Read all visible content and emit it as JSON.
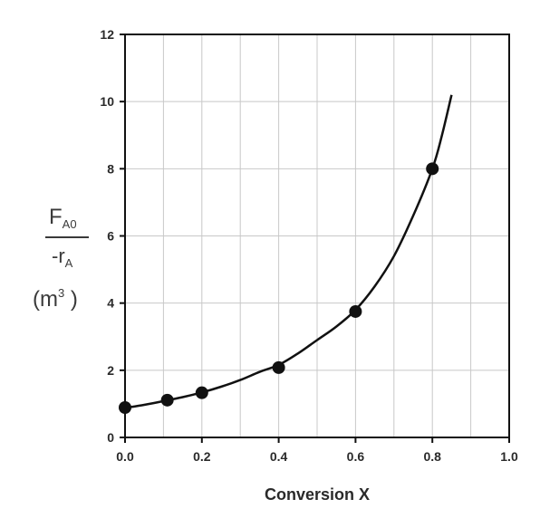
{
  "chart_data": {
    "type": "scatter",
    "title": "",
    "xlabel": "Conversion X",
    "ylabel": {
      "numerator": "F",
      "numerator_sub": "A0",
      "denominator": "-r",
      "denominator_sub": "A",
      "units_open": "(m",
      "units_sup": "3",
      "units_close": " )"
    },
    "xlim": [
      0.0,
      1.0
    ],
    "ylim": [
      0,
      12
    ],
    "x_ticks": [
      0.0,
      0.2,
      0.4,
      0.6,
      0.8,
      1.0
    ],
    "x_tick_labels": [
      "0.0",
      "0.2",
      "0.4",
      "0.6",
      "0.8",
      "1.0"
    ],
    "y_ticks": [
      0,
      2,
      4,
      6,
      8,
      10,
      12
    ],
    "y_tick_labels": [
      "0",
      "2",
      "4",
      "6",
      "8",
      "10",
      "12"
    ],
    "minor_grid_x": [
      0.1,
      0.3,
      0.5,
      0.7,
      0.9
    ],
    "grid": true,
    "series": [
      {
        "name": "data points",
        "x": [
          0.0,
          0.11,
          0.2,
          0.4,
          0.6,
          0.8
        ],
        "y": [
          0.89,
          1.11,
          1.33,
          2.08,
          3.75,
          8.0
        ]
      }
    ],
    "fit_curve": {
      "x": [
        0.0,
        0.05,
        0.1,
        0.15,
        0.2,
        0.25,
        0.3,
        0.35,
        0.4,
        0.45,
        0.5,
        0.55,
        0.6,
        0.65,
        0.7,
        0.75,
        0.8,
        0.825,
        0.85
      ],
      "y": [
        0.88,
        0.97,
        1.08,
        1.2,
        1.34,
        1.51,
        1.71,
        1.95,
        2.16,
        2.5,
        2.9,
        3.3,
        3.8,
        4.5,
        5.4,
        6.6,
        8.0,
        9.0,
        10.2
      ]
    }
  }
}
